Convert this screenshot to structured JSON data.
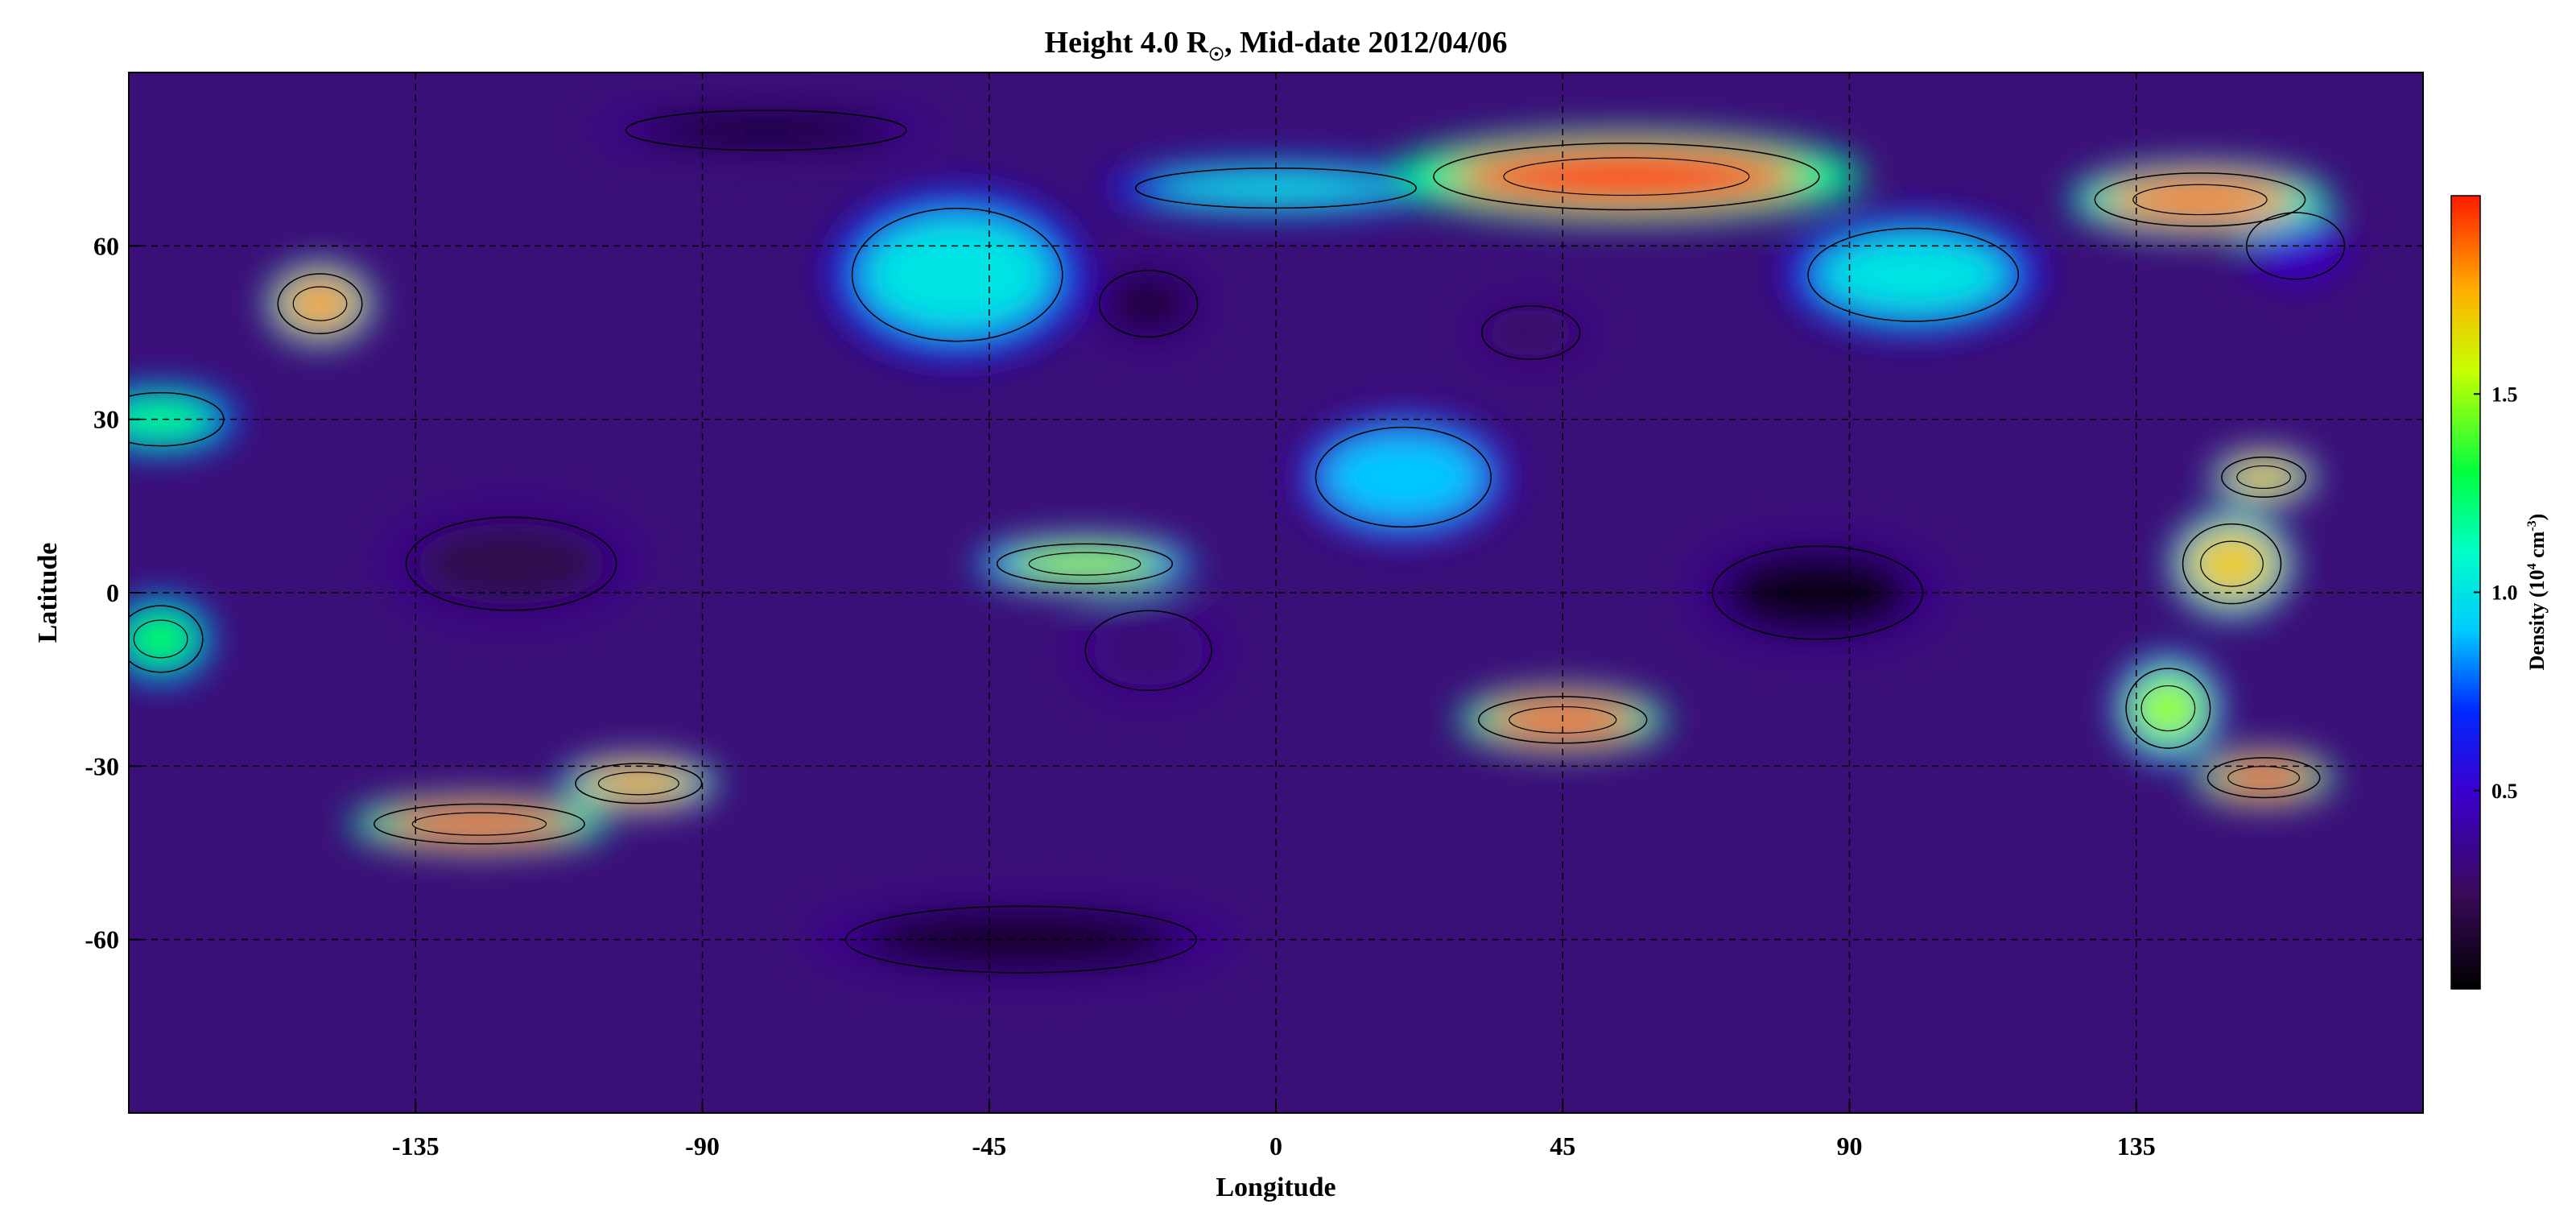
{
  "chart_data": {
    "type": "heatmap",
    "title": "Height 4.0 R",
    "title_subscript": "☉",
    "title_rest": ", Mid-date 2012/04/06",
    "xlabel": "Longitude",
    "ylabel": "Latitude",
    "xlim": [
      -180,
      180
    ],
    "ylim": [
      -90,
      90
    ],
    "x_ticks": [
      -135,
      -90,
      -45,
      0,
      45,
      90,
      135
    ],
    "y_ticks": [
      60,
      30,
      0,
      -30,
      -60
    ],
    "grid": true,
    "colorbar": {
      "label": "Density (10",
      "label_sup1": "4",
      "label_mid": " cm",
      "label_sup2": "-3",
      "label_end": ")",
      "ticks": [
        "0.5",
        "1.0",
        "1.5"
      ],
      "tick_values": [
        0.5,
        1.0,
        1.5
      ],
      "range": [
        0,
        2.0
      ],
      "position": "right"
    },
    "features": [
      {
        "lon": 55,
        "lat": 72,
        "value": 1.95,
        "width": 55,
        "height": 10
      },
      {
        "lon": 145,
        "lat": 68,
        "value": 1.85,
        "width": 30,
        "height": 8
      },
      {
        "lon": -125,
        "lat": -40,
        "value": 1.9,
        "width": 30,
        "height": 6
      },
      {
        "lon": -100,
        "lat": -33,
        "value": 1.75,
        "width": 18,
        "height": 6
      },
      {
        "lon": 45,
        "lat": -22,
        "value": 1.9,
        "width": 24,
        "height": 7
      },
      {
        "lon": 155,
        "lat": -32,
        "value": 1.9,
        "width": 16,
        "height": 6
      },
      {
        "lon": -150,
        "lat": 50,
        "value": 1.8,
        "width": 12,
        "height": 9
      },
      {
        "lon": 150,
        "lat": 5,
        "value": 1.7,
        "width": 14,
        "height": 12
      },
      {
        "lon": 155,
        "lat": 20,
        "value": 1.7,
        "width": 12,
        "height": 6
      },
      {
        "lon": 140,
        "lat": -20,
        "value": 1.5,
        "width": 12,
        "height": 12
      },
      {
        "lon": -30,
        "lat": 5,
        "value": 1.5,
        "width": 25,
        "height": 6
      },
      {
        "lon": -175,
        "lat": -8,
        "value": 1.3,
        "width": 12,
        "height": 10
      },
      {
        "lon": -175,
        "lat": 30,
        "value": 1.2,
        "width": 18,
        "height": 8
      },
      {
        "lon": 100,
        "lat": 55,
        "value": 1.0,
        "width": 30,
        "height": 14
      },
      {
        "lon": -50,
        "lat": 55,
        "value": 1.0,
        "width": 30,
        "height": 20
      },
      {
        "lon": 20,
        "lat": 20,
        "value": 0.9,
        "width": 25,
        "height": 15
      },
      {
        "lon": 0,
        "lat": 70,
        "value": 1.0,
        "width": 40,
        "height": 6
      },
      {
        "lon": 160,
        "lat": 60,
        "value": 0.5,
        "width": 14,
        "height": 10
      },
      {
        "lon": 85,
        "lat": 0,
        "value": 0.05,
        "width": 30,
        "height": 14
      },
      {
        "lon": -120,
        "lat": 5,
        "value": 0.2,
        "width": 30,
        "height": 14
      },
      {
        "lon": -20,
        "lat": -10,
        "value": 0.3,
        "width": 18,
        "height": 12
      },
      {
        "lon": 40,
        "lat": 45,
        "value": 0.25,
        "width": 14,
        "height": 8
      },
      {
        "lon": -20,
        "lat": 50,
        "value": 0.15,
        "width": 14,
        "height": 10
      },
      {
        "lon": -80,
        "lat": 80,
        "value": 0.1,
        "width": 40,
        "height": 6
      },
      {
        "lon": -40,
        "lat": -60,
        "value": 0.1,
        "width": 50,
        "height": 10
      }
    ]
  }
}
